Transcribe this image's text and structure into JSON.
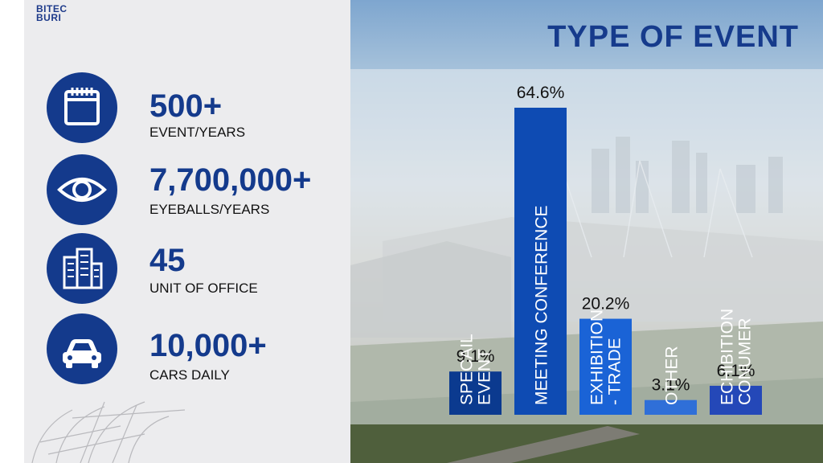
{
  "brand": {
    "line1": "BITEC",
    "line2": "BURI"
  },
  "stats": [
    {
      "value": "500+",
      "label": "EVENT/YEARS",
      "icon": "calendar-icon"
    },
    {
      "value": "7,700,000+",
      "label": "EYEBALLS/YEARS",
      "icon": "eye-icon"
    },
    {
      "value": "45",
      "label": "UNIT OF OFFICE",
      "icon": "building-icon"
    },
    {
      "value": "10,000+",
      "label": "CARS DAILY",
      "icon": "car-icon"
    }
  ],
  "colors": {
    "accent": "#143a8c",
    "bar_colors": [
      "#0b3a8f",
      "#0e4bb3",
      "#1a63d6",
      "#2f6fd8",
      "#2448b8"
    ]
  },
  "chart_data": {
    "type": "bar",
    "title": "TYPE OF EVENT",
    "categories": [
      "SPECAIL EVENT",
      "MEETING CONFERENCE",
      "EXHIBITION - TRADE",
      "OTHER",
      "ECHIBITION CONUMER"
    ],
    "values": [
      9.1,
      64.6,
      20.2,
      3.1,
      6.1
    ],
    "value_labels": [
      "9.1%",
      "64.6%",
      "20.2%",
      "3.1%",
      "6.1%"
    ],
    "xlabel": "",
    "ylabel": "",
    "grid": false,
    "legend": "none"
  }
}
